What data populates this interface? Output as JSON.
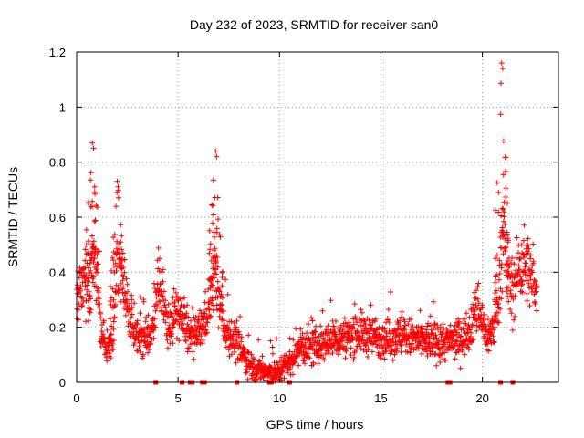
{
  "chart_data": {
    "type": "scatter",
    "title": "Day 232 of 2023, SRMTID for receiver san0",
    "xlabel": "GPS time / hours",
    "ylabel": "SRMTID / TECUs",
    "xlim": [
      0,
      23.75
    ],
    "ylim": [
      0,
      1.2
    ],
    "x_ticks": [
      0,
      5,
      10,
      15,
      20
    ],
    "x_tick_labels": [
      "0",
      "5",
      "10",
      "15",
      "20"
    ],
    "y_ticks": [
      0,
      0.2,
      0.4,
      0.6,
      0.8,
      1.0,
      1.2
    ],
    "y_tick_labels": [
      "0",
      "0.2",
      "0.4",
      "0.6",
      "0.8",
      "1",
      "1.2"
    ],
    "grid": true,
    "marker": "plus",
    "color": "#ff0000",
    "profile": [
      [
        0.0,
        0.3
      ],
      [
        0.2,
        0.38
      ],
      [
        0.4,
        0.4
      ],
      [
        0.6,
        0.32
      ],
      [
        0.8,
        0.42
      ],
      [
        1.0,
        0.4
      ],
      [
        1.2,
        0.2
      ],
      [
        1.4,
        0.13
      ],
      [
        1.6,
        0.12
      ],
      [
        1.8,
        0.16
      ],
      [
        2.0,
        0.45
      ],
      [
        2.2,
        0.4
      ],
      [
        2.4,
        0.32
      ],
      [
        2.6,
        0.27
      ],
      [
        2.8,
        0.2
      ],
      [
        3.0,
        0.17
      ],
      [
        3.4,
        0.16
      ],
      [
        3.7,
        0.18
      ],
      [
        4.0,
        0.36
      ],
      [
        4.2,
        0.3
      ],
      [
        4.5,
        0.2
      ],
      [
        4.8,
        0.24
      ],
      [
        5.0,
        0.26
      ],
      [
        5.2,
        0.23
      ],
      [
        5.5,
        0.18
      ],
      [
        5.8,
        0.16
      ],
      [
        6.0,
        0.18
      ],
      [
        6.3,
        0.22
      ],
      [
        6.6,
        0.3
      ],
      [
        6.8,
        0.4
      ],
      [
        7.0,
        0.3
      ],
      [
        7.3,
        0.2
      ],
      [
        7.6,
        0.17
      ],
      [
        7.9,
        0.14
      ],
      [
        8.2,
        0.1
      ],
      [
        8.5,
        0.07
      ],
      [
        8.8,
        0.05
      ],
      [
        9.2,
        0.04
      ],
      [
        9.6,
        0.03
      ],
      [
        10.0,
        0.04
      ],
      [
        10.3,
        0.06
      ],
      [
        10.6,
        0.08
      ],
      [
        11.0,
        0.13
      ],
      [
        11.5,
        0.12
      ],
      [
        12.0,
        0.14
      ],
      [
        12.5,
        0.15
      ],
      [
        13.0,
        0.16
      ],
      [
        13.5,
        0.17
      ],
      [
        14.0,
        0.18
      ],
      [
        14.5,
        0.17
      ],
      [
        15.0,
        0.16
      ],
      [
        15.5,
        0.16
      ],
      [
        16.0,
        0.17
      ],
      [
        16.5,
        0.16
      ],
      [
        17.0,
        0.15
      ],
      [
        17.5,
        0.15
      ],
      [
        18.0,
        0.14
      ],
      [
        18.5,
        0.15
      ],
      [
        19.0,
        0.16
      ],
      [
        19.4,
        0.2
      ],
      [
        19.8,
        0.28
      ],
      [
        20.0,
        0.22
      ],
      [
        20.2,
        0.17
      ],
      [
        20.5,
        0.18
      ],
      [
        20.8,
        0.3
      ],
      [
        21.0,
        0.55
      ],
      [
        21.2,
        0.4
      ],
      [
        21.5,
        0.32
      ],
      [
        21.8,
        0.42
      ],
      [
        22.1,
        0.44
      ],
      [
        22.4,
        0.38
      ],
      [
        22.7,
        0.35
      ]
    ],
    "spikes": [
      {
        "x": 0.78,
        "peak": 0.87
      },
      {
        "x": 2.0,
        "peak": 0.73
      },
      {
        "x": 6.85,
        "peak": 0.84
      },
      {
        "x": 20.95,
        "peak": 1.16
      }
    ],
    "near_zero_markers_x": [
      3.9,
      5.2,
      5.6,
      5.7,
      6.2,
      6.3,
      7.9,
      9.5,
      9.6,
      10.5,
      18.3,
      18.4,
      20.9,
      21.5
    ]
  }
}
